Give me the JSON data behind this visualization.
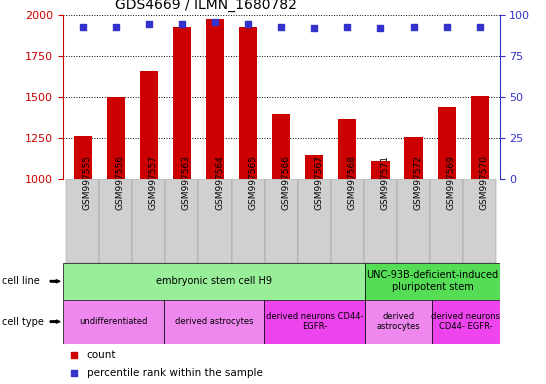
{
  "title": "GDS4669 / ILMN_1680782",
  "samples": [
    "GSM997555",
    "GSM997556",
    "GSM997557",
    "GSM997563",
    "GSM997564",
    "GSM997565",
    "GSM997566",
    "GSM997567",
    "GSM997568",
    "GSM997571",
    "GSM997572",
    "GSM997569",
    "GSM997570"
  ],
  "counts": [
    1263,
    1497,
    1661,
    1930,
    1977,
    1930,
    1395,
    1145,
    1365,
    1110,
    1252,
    1440,
    1505
  ],
  "percentiles": [
    93,
    93,
    95,
    95,
    96,
    95,
    93,
    92,
    93,
    92,
    93,
    93,
    93
  ],
  "ylim_left": [
    1000,
    2000
  ],
  "ylim_right": [
    0,
    100
  ],
  "yticks_left": [
    1000,
    1250,
    1500,
    1750,
    2000
  ],
  "yticks_right": [
    0,
    25,
    50,
    75,
    100
  ],
  "bar_color": "#cc0000",
  "dot_color": "#3333cc",
  "plot_bg": "#ffffff",
  "xticklabel_bg": "#d0d0d0",
  "cell_line_groups": [
    {
      "label": "embryonic stem cell H9",
      "start": 0,
      "end": 9,
      "color": "#99ee99"
    },
    {
      "label": "UNC-93B-deficient-induced\npluripotent stem",
      "start": 9,
      "end": 13,
      "color": "#55dd55"
    }
  ],
  "cell_type_groups": [
    {
      "label": "undifferentiated",
      "start": 0,
      "end": 3,
      "color": "#ee88ee"
    },
    {
      "label": "derived astrocytes",
      "start": 3,
      "end": 6,
      "color": "#ee88ee"
    },
    {
      "label": "derived neurons CD44-\nEGFR-",
      "start": 6,
      "end": 9,
      "color": "#ee44ee"
    },
    {
      "label": "derived\nastrocytes",
      "start": 9,
      "end": 11,
      "color": "#ee88ee"
    },
    {
      "label": "derived neurons\nCD44- EGFR-",
      "start": 11,
      "end": 13,
      "color": "#ee44ee"
    }
  ],
  "legend_items": [
    {
      "label": "count",
      "color": "#cc0000"
    },
    {
      "label": "percentile rank within the sample",
      "color": "#3333cc"
    }
  ]
}
